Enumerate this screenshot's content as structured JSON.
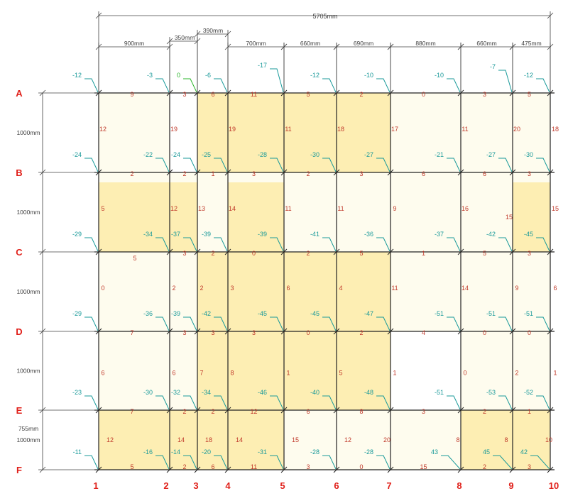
{
  "colors": {
    "row_label": "#e0201a",
    "axis_number": "#e0201a",
    "dimension": "#404040",
    "marker": "#1a9a9a",
    "marker_highlight": "#2ab52a",
    "cell_value": "#c0392b",
    "fill_strong": "#fdeeb3",
    "fill_light": "#fefcee",
    "grid": "#222222"
  },
  "dimensions": {
    "total": "5705mm",
    "columns": [
      "900mm",
      "350mm",
      "390mm",
      "700mm",
      "660mm",
      "690mm",
      "880mm",
      "660mm",
      "475mm"
    ],
    "rows": [
      "1000mm",
      "1000mm",
      "1000mm",
      "1000mm",
      "1000mm",
      "755mm"
    ]
  },
  "column_numbers": [
    "1",
    "2",
    "3",
    "4",
    "5",
    "6",
    "7",
    "8",
    "9",
    "10"
  ],
  "row_letters": [
    "A",
    "B",
    "C",
    "D",
    "E",
    "F"
  ],
  "markers": [
    [
      "-12",
      "-3",
      "0",
      "-6",
      "-17",
      "-12",
      "-10",
      "-10",
      "-7",
      "-12"
    ],
    [
      "-24",
      "-22",
      "-24",
      "-25",
      "-28",
      "-30",
      "-27",
      "-21",
      "-27",
      "-30"
    ],
    [
      "-29",
      "-34",
      "-37",
      "-39",
      "-39",
      "-41",
      "-36",
      "-37",
      "-42",
      "-45"
    ],
    [
      "-29",
      "-36",
      "-39",
      "-42",
      "-45",
      "-45",
      "-47",
      "-51",
      "-51",
      "-51"
    ],
    [
      "-23",
      "-30",
      "-32",
      "-34",
      "-46",
      "-40",
      "-48",
      "-51",
      "-53",
      "-52"
    ],
    [
      "-11",
      "-16",
      "-14",
      "-20",
      "-31",
      "-28",
      "-28",
      "43",
      "45",
      "42"
    ]
  ],
  "horizontal_values": [
    [
      "9",
      "3",
      "6",
      "11",
      "5",
      "2",
      "0",
      "3",
      "5"
    ],
    [
      "2",
      "2",
      "1",
      "3",
      "2",
      "3",
      "6",
      "6",
      "3"
    ],
    [
      "5",
      "3",
      "2",
      "0",
      "2",
      "5",
      "1",
      "5",
      "3"
    ],
    [
      "7",
      "3",
      "3",
      "3",
      "0",
      "2",
      "4",
      "0",
      "0"
    ],
    [
      "7",
      "2",
      "2",
      "12",
      "6",
      "8",
      "3",
      "2",
      "1"
    ],
    [
      "5",
      "2",
      "6",
      "11",
      "3",
      "0",
      "15",
      "2",
      "3"
    ]
  ],
  "vertical_values": [
    [
      "12",
      "19",
      "",
      "19",
      "11",
      "18",
      "17",
      "11",
      "20",
      "18"
    ],
    [
      "5",
      "12",
      "13",
      "14",
      "11",
      "11",
      "9",
      "16",
      "15",
      "15"
    ],
    [
      "0",
      "2",
      "2",
      "3",
      "6",
      "4",
      "11",
      "14",
      "9",
      "6"
    ],
    [
      "6",
      "6",
      "7",
      "8",
      "1",
      "5",
      "1",
      "0",
      "2",
      "1"
    ],
    [
      "12",
      "14",
      "18",
      "14",
      "15",
      "12",
      "20",
      "8",
      "8",
      "10"
    ]
  ]
}
